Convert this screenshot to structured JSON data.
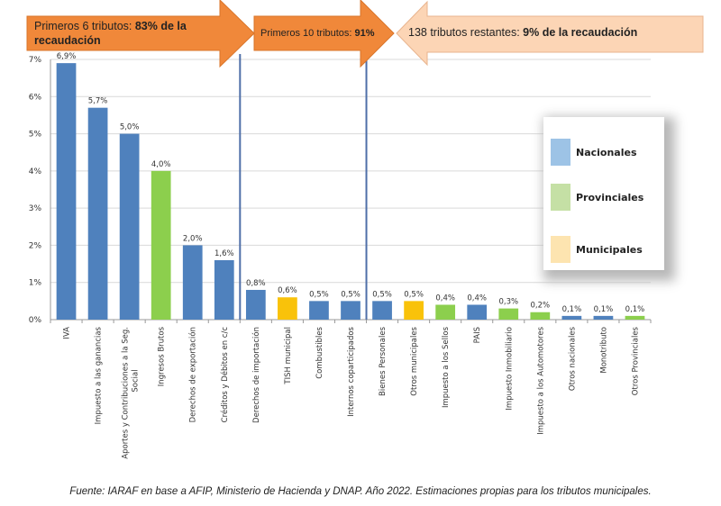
{
  "arrows": {
    "first": {
      "text": "Primeros 6 tributos: ",
      "bold": "83% de la recaudación"
    },
    "second": {
      "text": "Primeros 10 tributos: ",
      "bold": "91%"
    },
    "third": {
      "text": "138 tributos restantes: ",
      "bold": "9% de la recaudación"
    }
  },
  "colors": {
    "Nacionales": "#4f81bd",
    "Provinciales": "#8ccf4d",
    "Municipales": "#f9c20a",
    "arrow_dark": "#f0883a",
    "arrow_light": "#fcd5b5"
  },
  "legend": {
    "items": [
      {
        "label": "Nacionales",
        "color": "#9dc3e6"
      },
      {
        "label": "Provinciales",
        "color": "#c5e0a5"
      },
      {
        "label": "Municipales",
        "color": "#fde4b0"
      }
    ]
  },
  "chart_data": {
    "type": "bar",
    "ylim": [
      0,
      7
    ],
    "yticks": [
      "0%",
      "1%",
      "2%",
      "3%",
      "4%",
      "5%",
      "6%",
      "7%"
    ],
    "grid": true,
    "categories": [
      "IVA",
      "Impuesto a las ganancias",
      "Aportes y Contribuciones a la Seg. Social",
      "Ingresos Brutos",
      "Derechos de exportación",
      "Créditos y Débitos en c/c",
      "Derechos de importación",
      "TISH municipal",
      "Combustibles",
      "Internos coparticipados",
      "Bienes Personales",
      "Otros municipales",
      "Impuesto a los Sellos",
      "PAIS",
      "Impuesto Inmobiliario",
      "Impuesto a los Automotores",
      "Otros nacionales",
      "Monotributo",
      "Otros Provinciales"
    ],
    "values": [
      6.9,
      5.7,
      5.0,
      4.0,
      2.0,
      1.6,
      0.8,
      0.6,
      0.5,
      0.5,
      0.5,
      0.5,
      0.4,
      0.4,
      0.3,
      0.2,
      0.1,
      0.1,
      0.1
    ],
    "data_labels": [
      "6,9%",
      "5,7%",
      "5,0%",
      "4,0%",
      "2,0%",
      "1,6%",
      "0,8%",
      "0,6%",
      "0,5%",
      "0,5%",
      "0,5%",
      "0,5%",
      "0,4%",
      "0,4%",
      "0,3%",
      "0,2%",
      "0,1%",
      "0,1%",
      "0,1%"
    ],
    "levels": [
      "Nacionales",
      "Nacionales",
      "Nacionales",
      "Provinciales",
      "Nacionales",
      "Nacionales",
      "Nacionales",
      "Municipales",
      "Nacionales",
      "Nacionales",
      "Nacionales",
      "Municipales",
      "Provinciales",
      "Nacionales",
      "Provinciales",
      "Provinciales",
      "Nacionales",
      "Nacionales",
      "Provinciales"
    ],
    "separators_after": [
      6,
      10
    ]
  },
  "footer": "Fuente: IARAF en base a AFIP, Ministerio de Hacienda y DNAP. Año 2022. Estimaciones propias para los tributos municipales."
}
